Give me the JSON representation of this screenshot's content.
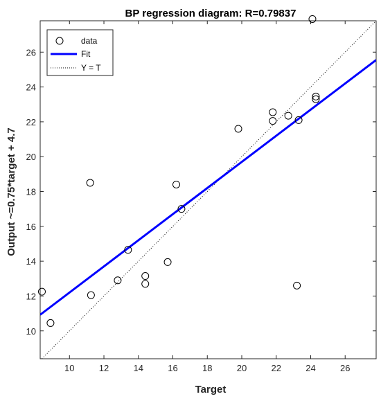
{
  "chart_data": {
    "type": "scatter",
    "title": "BP regression diagram: R=0.79837",
    "xlabel": "Target",
    "ylabel": "Output ~=0.75*target + 4.7",
    "xlim": [
      8.3,
      27.8
    ],
    "ylim": [
      8.4,
      27.8
    ],
    "xticks": [
      10,
      12,
      14,
      16,
      18,
      20,
      22,
      24,
      26
    ],
    "yticks": [
      10,
      12,
      14,
      16,
      18,
      20,
      22,
      24,
      26
    ],
    "grid": false,
    "legend": {
      "placement": "top-left",
      "entries": [
        "data",
        "Fit",
        "Y = T"
      ]
    },
    "colors": {
      "fit": "#0000ff",
      "identity": "#000000",
      "data": "#000000"
    },
    "series": [
      {
        "name": "data",
        "style": "circle-markers",
        "x": [
          8.4,
          8.9,
          11.2,
          11.25,
          12.8,
          13.4,
          14.4,
          14.4,
          15.7,
          16.2,
          16.5,
          19.8,
          21.8,
          21.8,
          22.7,
          23.2,
          23.3,
          24.1,
          24.3,
          24.3
        ],
        "y": [
          12.25,
          10.45,
          18.5,
          12.05,
          12.9,
          14.65,
          13.15,
          12.7,
          13.95,
          18.4,
          17.0,
          21.6,
          22.55,
          22.05,
          22.35,
          12.6,
          22.1,
          27.9,
          23.45,
          23.3
        ]
      },
      {
        "name": "Fit",
        "style": "line",
        "slope": 0.75,
        "intercept": 4.7
      },
      {
        "name": "Y = T",
        "style": "dotted-line",
        "slope": 1,
        "intercept": 0
      }
    ]
  }
}
